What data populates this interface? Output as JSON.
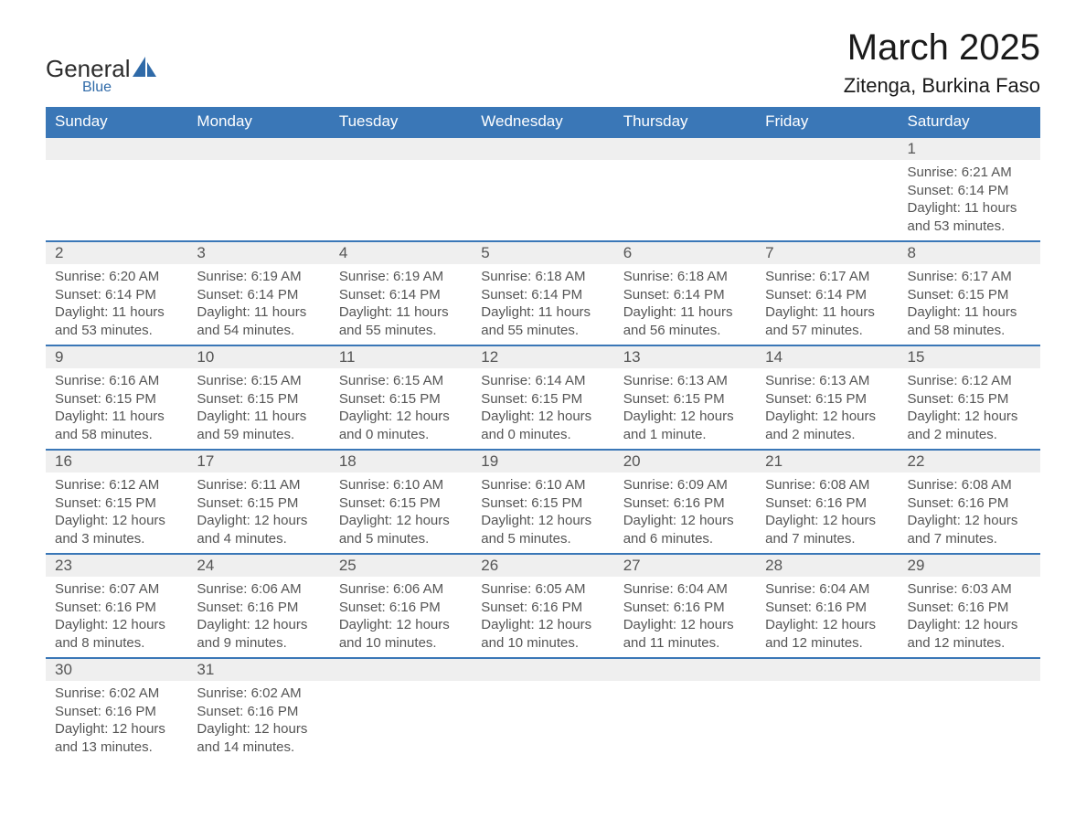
{
  "logo": {
    "general": "General",
    "blue": "Blue"
  },
  "title": "March 2025",
  "location": "Zitenga, Burkina Faso",
  "colors": {
    "header_bg": "#3a77b7",
    "header_text": "#ffffff",
    "daynum_bg": "#efefef",
    "text": "#555555",
    "border": "#3a77b7",
    "logo_blue": "#2f6aa8"
  },
  "day_headers": [
    "Sunday",
    "Monday",
    "Tuesday",
    "Wednesday",
    "Thursday",
    "Friday",
    "Saturday"
  ],
  "weeks": [
    {
      "nums": [
        "",
        "",
        "",
        "",
        "",
        "",
        "1"
      ],
      "cells": [
        null,
        null,
        null,
        null,
        null,
        null,
        {
          "sunrise": "Sunrise: 6:21 AM",
          "sunset": "Sunset: 6:14 PM",
          "d1": "Daylight: 11 hours",
          "d2": "and 53 minutes."
        }
      ]
    },
    {
      "nums": [
        "2",
        "3",
        "4",
        "5",
        "6",
        "7",
        "8"
      ],
      "cells": [
        {
          "sunrise": "Sunrise: 6:20 AM",
          "sunset": "Sunset: 6:14 PM",
          "d1": "Daylight: 11 hours",
          "d2": "and 53 minutes."
        },
        {
          "sunrise": "Sunrise: 6:19 AM",
          "sunset": "Sunset: 6:14 PM",
          "d1": "Daylight: 11 hours",
          "d2": "and 54 minutes."
        },
        {
          "sunrise": "Sunrise: 6:19 AM",
          "sunset": "Sunset: 6:14 PM",
          "d1": "Daylight: 11 hours",
          "d2": "and 55 minutes."
        },
        {
          "sunrise": "Sunrise: 6:18 AM",
          "sunset": "Sunset: 6:14 PM",
          "d1": "Daylight: 11 hours",
          "d2": "and 55 minutes."
        },
        {
          "sunrise": "Sunrise: 6:18 AM",
          "sunset": "Sunset: 6:14 PM",
          "d1": "Daylight: 11 hours",
          "d2": "and 56 minutes."
        },
        {
          "sunrise": "Sunrise: 6:17 AM",
          "sunset": "Sunset: 6:14 PM",
          "d1": "Daylight: 11 hours",
          "d2": "and 57 minutes."
        },
        {
          "sunrise": "Sunrise: 6:17 AM",
          "sunset": "Sunset: 6:15 PM",
          "d1": "Daylight: 11 hours",
          "d2": "and 58 minutes."
        }
      ]
    },
    {
      "nums": [
        "9",
        "10",
        "11",
        "12",
        "13",
        "14",
        "15"
      ],
      "cells": [
        {
          "sunrise": "Sunrise: 6:16 AM",
          "sunset": "Sunset: 6:15 PM",
          "d1": "Daylight: 11 hours",
          "d2": "and 58 minutes."
        },
        {
          "sunrise": "Sunrise: 6:15 AM",
          "sunset": "Sunset: 6:15 PM",
          "d1": "Daylight: 11 hours",
          "d2": "and 59 minutes."
        },
        {
          "sunrise": "Sunrise: 6:15 AM",
          "sunset": "Sunset: 6:15 PM",
          "d1": "Daylight: 12 hours",
          "d2": "and 0 minutes."
        },
        {
          "sunrise": "Sunrise: 6:14 AM",
          "sunset": "Sunset: 6:15 PM",
          "d1": "Daylight: 12 hours",
          "d2": "and 0 minutes."
        },
        {
          "sunrise": "Sunrise: 6:13 AM",
          "sunset": "Sunset: 6:15 PM",
          "d1": "Daylight: 12 hours",
          "d2": "and 1 minute."
        },
        {
          "sunrise": "Sunrise: 6:13 AM",
          "sunset": "Sunset: 6:15 PM",
          "d1": "Daylight: 12 hours",
          "d2": "and 2 minutes."
        },
        {
          "sunrise": "Sunrise: 6:12 AM",
          "sunset": "Sunset: 6:15 PM",
          "d1": "Daylight: 12 hours",
          "d2": "and 2 minutes."
        }
      ]
    },
    {
      "nums": [
        "16",
        "17",
        "18",
        "19",
        "20",
        "21",
        "22"
      ],
      "cells": [
        {
          "sunrise": "Sunrise: 6:12 AM",
          "sunset": "Sunset: 6:15 PM",
          "d1": "Daylight: 12 hours",
          "d2": "and 3 minutes."
        },
        {
          "sunrise": "Sunrise: 6:11 AM",
          "sunset": "Sunset: 6:15 PM",
          "d1": "Daylight: 12 hours",
          "d2": "and 4 minutes."
        },
        {
          "sunrise": "Sunrise: 6:10 AM",
          "sunset": "Sunset: 6:15 PM",
          "d1": "Daylight: 12 hours",
          "d2": "and 5 minutes."
        },
        {
          "sunrise": "Sunrise: 6:10 AM",
          "sunset": "Sunset: 6:15 PM",
          "d1": "Daylight: 12 hours",
          "d2": "and 5 minutes."
        },
        {
          "sunrise": "Sunrise: 6:09 AM",
          "sunset": "Sunset: 6:16 PM",
          "d1": "Daylight: 12 hours",
          "d2": "and 6 minutes."
        },
        {
          "sunrise": "Sunrise: 6:08 AM",
          "sunset": "Sunset: 6:16 PM",
          "d1": "Daylight: 12 hours",
          "d2": "and 7 minutes."
        },
        {
          "sunrise": "Sunrise: 6:08 AM",
          "sunset": "Sunset: 6:16 PM",
          "d1": "Daylight: 12 hours",
          "d2": "and 7 minutes."
        }
      ]
    },
    {
      "nums": [
        "23",
        "24",
        "25",
        "26",
        "27",
        "28",
        "29"
      ],
      "cells": [
        {
          "sunrise": "Sunrise: 6:07 AM",
          "sunset": "Sunset: 6:16 PM",
          "d1": "Daylight: 12 hours",
          "d2": "and 8 minutes."
        },
        {
          "sunrise": "Sunrise: 6:06 AM",
          "sunset": "Sunset: 6:16 PM",
          "d1": "Daylight: 12 hours",
          "d2": "and 9 minutes."
        },
        {
          "sunrise": "Sunrise: 6:06 AM",
          "sunset": "Sunset: 6:16 PM",
          "d1": "Daylight: 12 hours",
          "d2": "and 10 minutes."
        },
        {
          "sunrise": "Sunrise: 6:05 AM",
          "sunset": "Sunset: 6:16 PM",
          "d1": "Daylight: 12 hours",
          "d2": "and 10 minutes."
        },
        {
          "sunrise": "Sunrise: 6:04 AM",
          "sunset": "Sunset: 6:16 PM",
          "d1": "Daylight: 12 hours",
          "d2": "and 11 minutes."
        },
        {
          "sunrise": "Sunrise: 6:04 AM",
          "sunset": "Sunset: 6:16 PM",
          "d1": "Daylight: 12 hours",
          "d2": "and 12 minutes."
        },
        {
          "sunrise": "Sunrise: 6:03 AM",
          "sunset": "Sunset: 6:16 PM",
          "d1": "Daylight: 12 hours",
          "d2": "and 12 minutes."
        }
      ]
    },
    {
      "nums": [
        "30",
        "31",
        "",
        "",
        "",
        "",
        ""
      ],
      "cells": [
        {
          "sunrise": "Sunrise: 6:02 AM",
          "sunset": "Sunset: 6:16 PM",
          "d1": "Daylight: 12 hours",
          "d2": "and 13 minutes."
        },
        {
          "sunrise": "Sunrise: 6:02 AM",
          "sunset": "Sunset: 6:16 PM",
          "d1": "Daylight: 12 hours",
          "d2": "and 14 minutes."
        },
        null,
        null,
        null,
        null,
        null
      ]
    }
  ]
}
